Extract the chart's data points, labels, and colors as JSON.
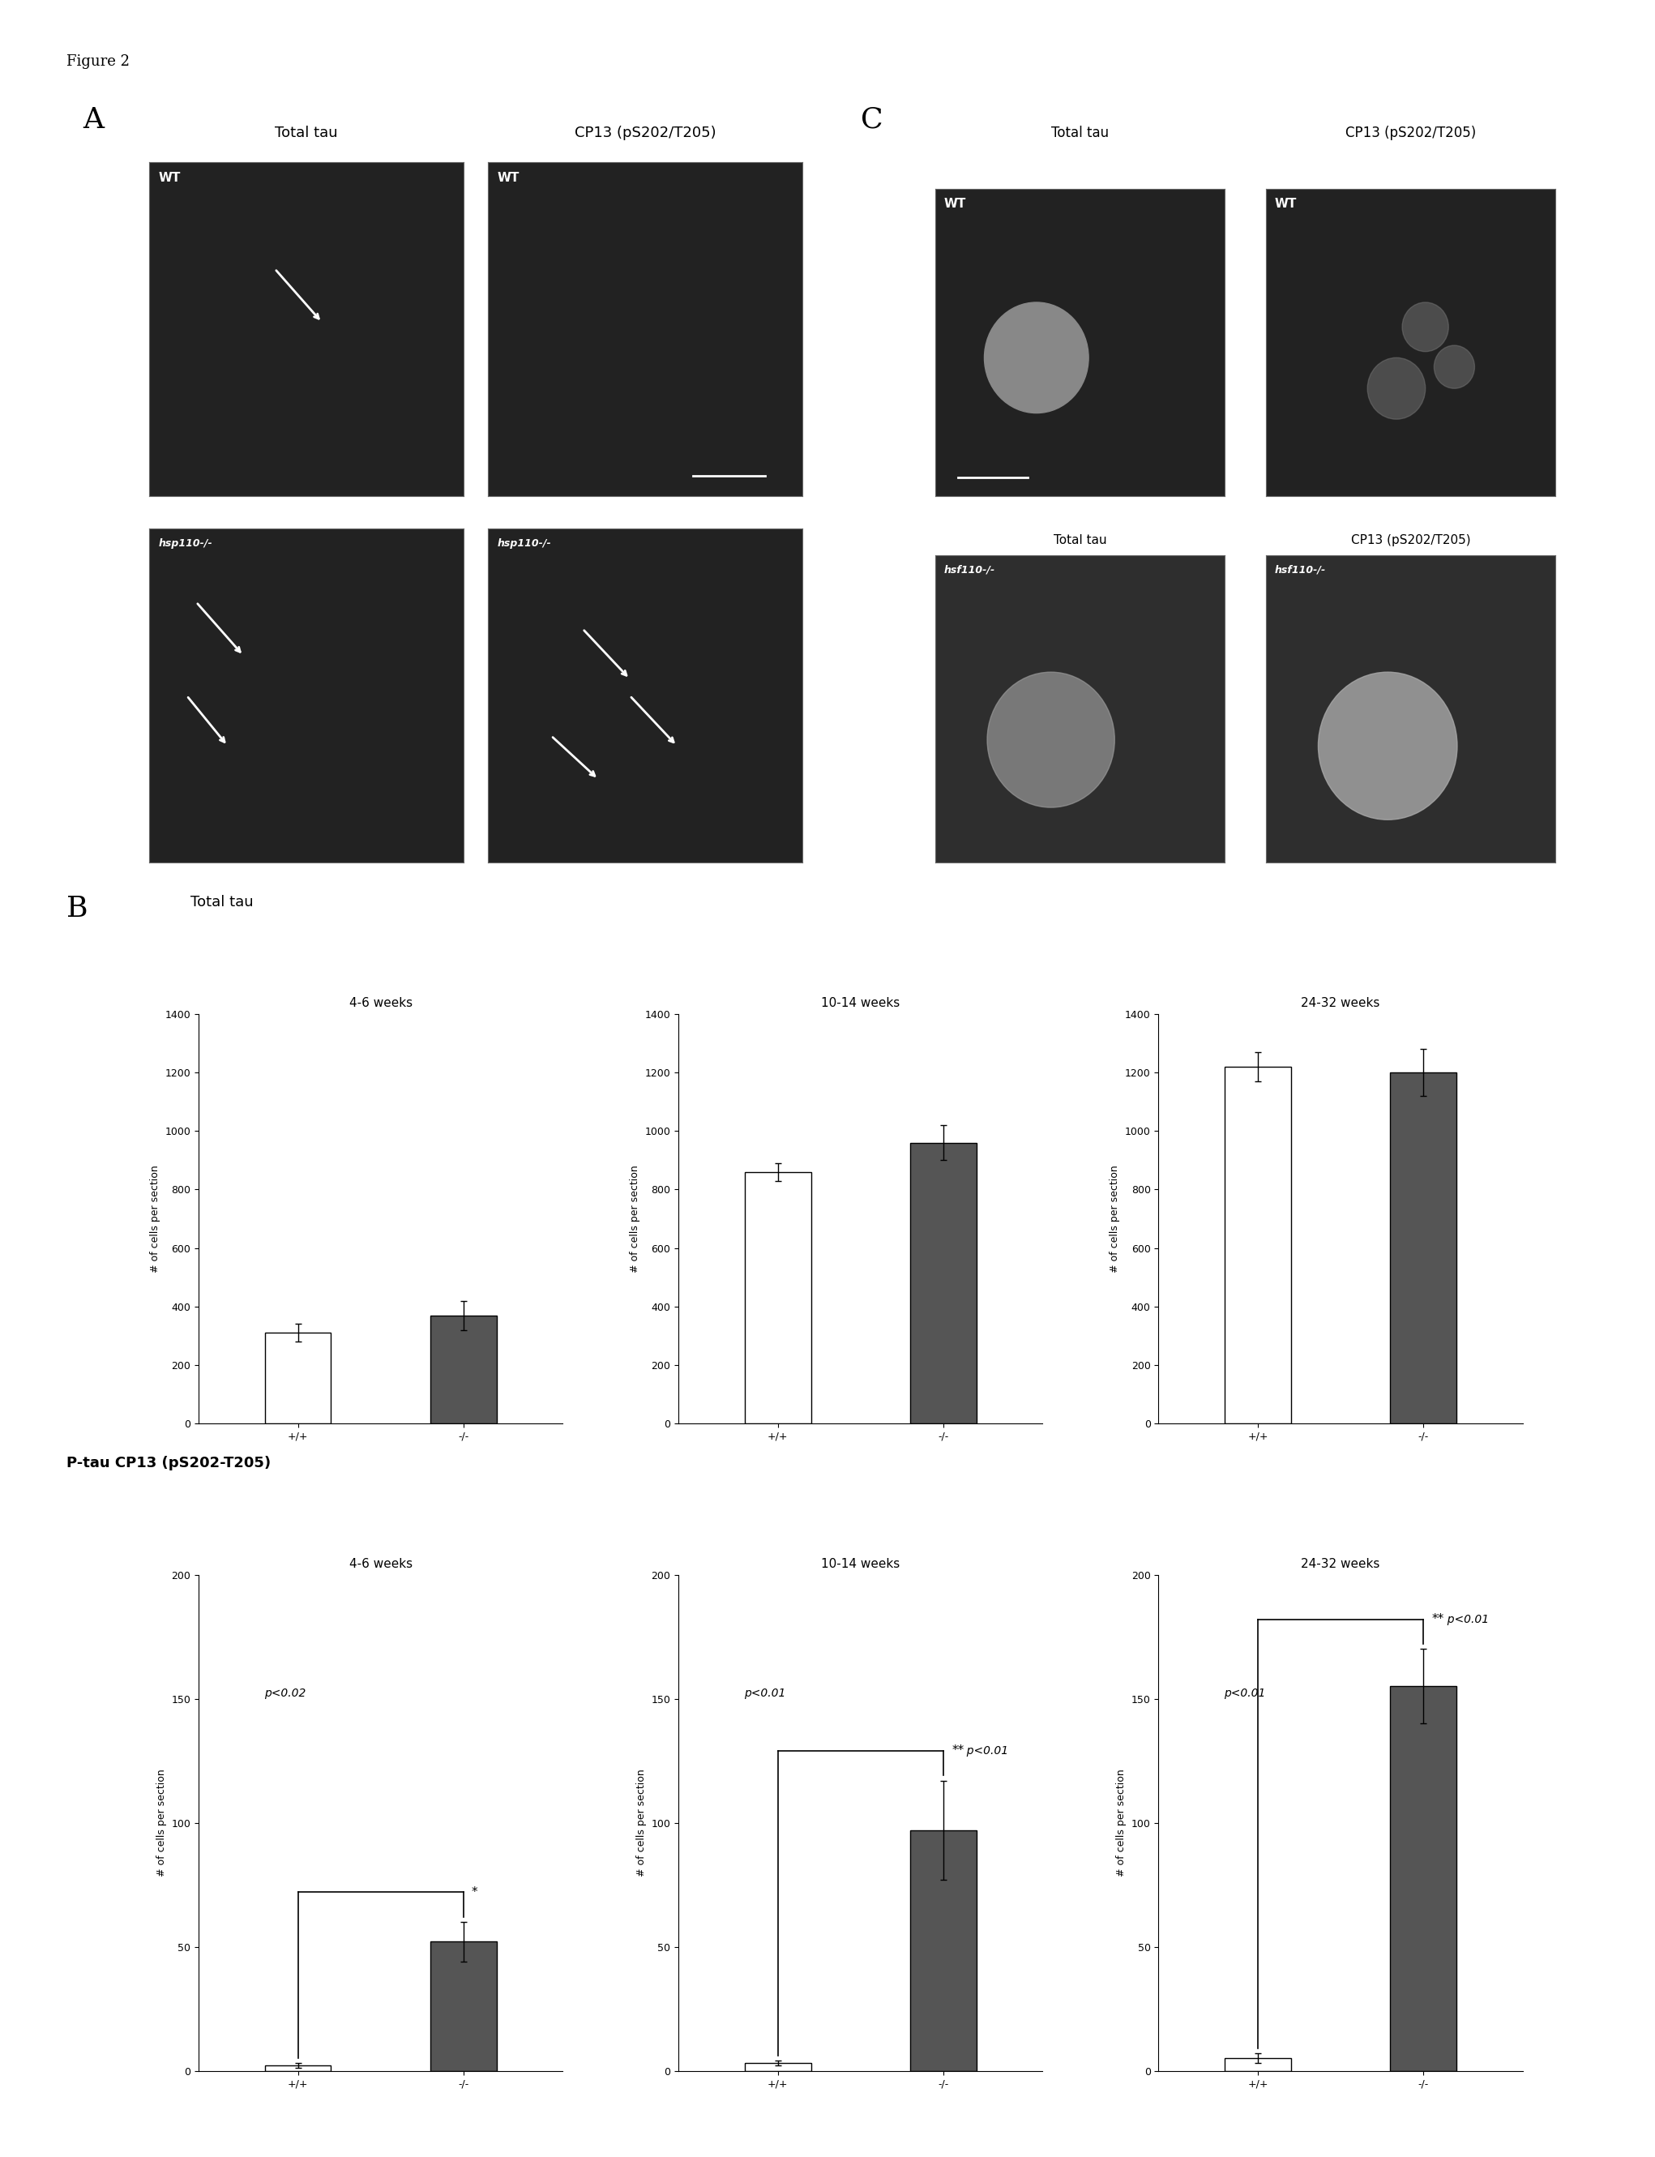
{
  "figure_label": "Figure 2",
  "panel_A_label": "A",
  "panel_B_label": "B",
  "panel_C_label": "C",
  "panel_A_col1_title": "Total tau",
  "panel_A_col2_title": "CP13 (pS202/T205)",
  "panel_C_col1_title": "Total tau",
  "panel_C_col2_title": "CP13 (pS202/T205)",
  "B_subtitle": "Total tau",
  "B2_subtitle": "P-tau CP13 (pS202-T205)",
  "time_points": [
    "4-6 weeks",
    "10-14 weeks",
    "24-32 weeks"
  ],
  "total_tau_wt": [
    310,
    860,
    1220
  ],
  "total_tau_wt_err": [
    30,
    30,
    50
  ],
  "total_tau_ko": [
    370,
    960,
    1200
  ],
  "total_tau_ko_err": [
    50,
    60,
    80
  ],
  "total_tau_ylim": [
    0,
    1400
  ],
  "total_tau_yticks": [
    0,
    200,
    400,
    600,
    800,
    1000,
    1200,
    1400
  ],
  "ptau_wt": [
    2,
    3,
    5
  ],
  "ptau_wt_err": [
    1,
    1,
    2
  ],
  "ptau_ko": [
    52,
    97,
    155
  ],
  "ptau_ko_err": [
    8,
    20,
    15
  ],
  "ptau_ylim": [
    0,
    200
  ],
  "ptau_yticks": [
    0,
    50,
    100,
    150,
    200
  ],
  "ylabel": "# of cells per section",
  "xtick_labels": [
    "+/+",
    "-/-"
  ],
  "wt_color": "#ffffff",
  "ko_color": "#555555",
  "bar_edge_color": "#000000",
  "bar_width": 0.4,
  "significance_4_6": "p<0.02",
  "significance_10_14": "p<0.01",
  "significance_24_32": "p<0.01",
  "star_4_6": "*",
  "star_10_14": "**",
  "star_24_32": "**",
  "background_color": "#ffffff",
  "img_dark": "#222222",
  "img_medium": "#2e2e2e",
  "axis_fontsize": 9,
  "title_fontsize": 11,
  "panel_label_fontsize": 26
}
